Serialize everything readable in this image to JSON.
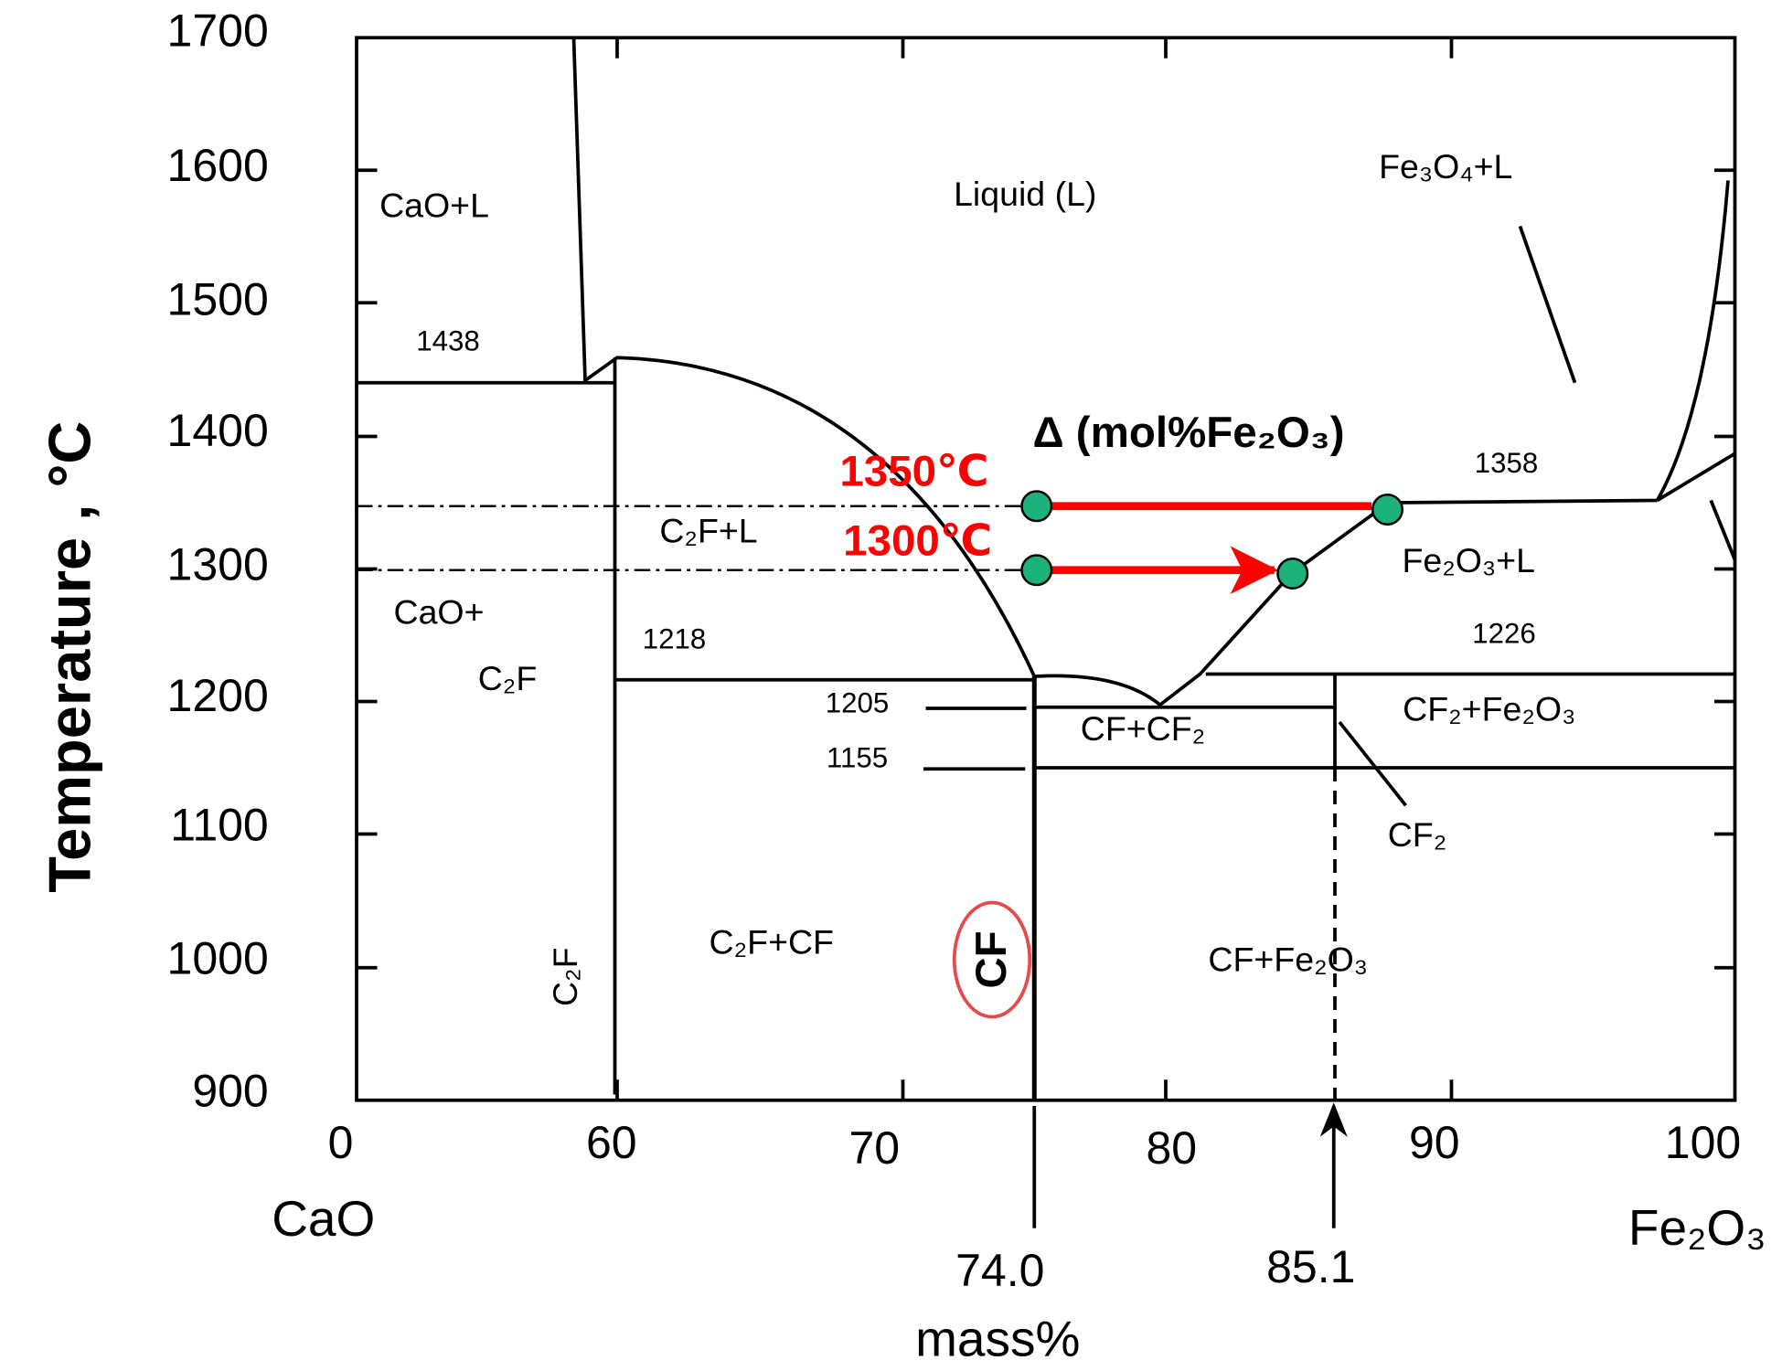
{
  "axes": {
    "y_label": "Temperature , °C",
    "y_ticks": [
      "1700",
      "1600",
      "1500",
      "1400",
      "1300",
      "1200",
      "1100",
      "1000",
      "900"
    ],
    "x_ticks": [
      "0",
      "60",
      "70",
      "80",
      "90",
      "100"
    ],
    "x_label": "mass%",
    "x_left": "CaO",
    "x_right": "Fe₂O₃"
  },
  "regions": [
    "CaO+L",
    "Liquid (L)",
    "Fe₃O₄+L",
    "C₂F+L",
    "CaO+",
    "C₂F",
    "Fe₂O₃+L",
    "CF+CF₂",
    "CF₂+Fe₂O₃",
    "CF₂",
    "C₂F+CF",
    "CF+Fe₂O₃",
    "C₂F",
    "CF"
  ],
  "temperatures": [
    "1438",
    "1358",
    "1218",
    "1226",
    "1205",
    "1155"
  ],
  "compositions": [
    "74.0",
    "85.1"
  ],
  "annotations": {
    "delta": "Δ (mol%Fe₂O₃)",
    "t1350": "1350℃",
    "t1300": "1300℃"
  }
}
